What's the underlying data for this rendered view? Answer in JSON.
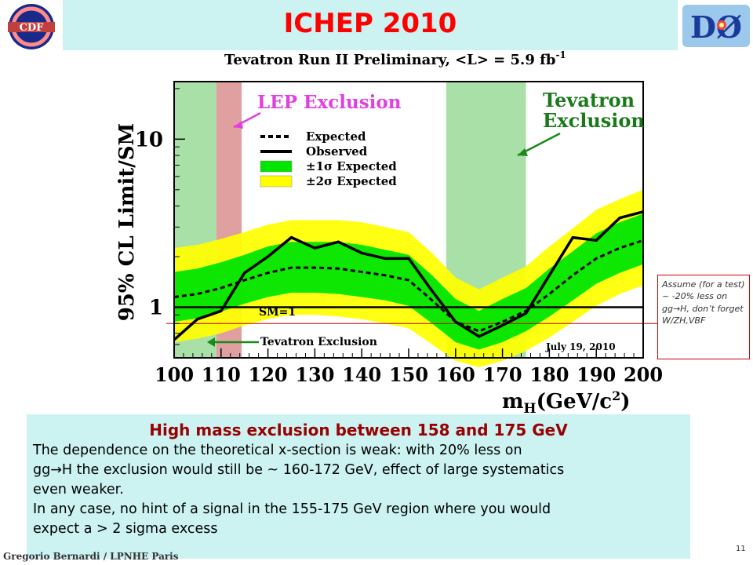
{
  "header": {
    "title": "ICHEP 2010",
    "left_logo_text": "CDF",
    "right_logo_text": "DØ"
  },
  "note": {
    "text": "Assume (for a test) ~ -20% less on gg→H, don’t forget W/ZH,VBF"
  },
  "bottom": {
    "heading": "High mass exclusion between 158 and 175 GeV",
    "line1": "The dependence  on the theoretical x-section is weak: with 20% less on",
    "line2": "gg→H the exclusion would still be ~ 160-172 GeV, effect of large systematics",
    "line3": "even weaker.",
    "line4": "In any case, no hint of a signal in the 155-175 GeV region where you would",
    "line5": "expect a > 2 sigma excess"
  },
  "footer": {
    "author": "Gregorio Bernardi / LPNHE Paris",
    "page": "11"
  },
  "colors": {
    "one_sigma": "#00e600",
    "two_sigma": "#ffff00",
    "tevatron_excl": "#a8e0a8",
    "lep_excl": "#e0a0a0",
    "title": "#ff0000"
  },
  "chart_data": {
    "type": "line",
    "title": "Tevatron Run II Preliminary, <L> = 5.9 fb",
    "title_sup": "-1",
    "ylabel": "95% CL Limit/SM",
    "xlabel": "m",
    "xlabel_sub": "H",
    "xlabel_unit": "(GeV/c",
    "xlabel_unit_sup": "2",
    "xlabel_unit_end": ")",
    "xlim": [
      100,
      200
    ],
    "ylim": [
      0.5,
      22
    ],
    "yscale": "log",
    "x_ticks": [
      100,
      110,
      120,
      130,
      140,
      150,
      160,
      170,
      180,
      190,
      200
    ],
    "y_tick_labels": [
      {
        "value": 10,
        "label": "10"
      },
      {
        "value": 1,
        "label": "1"
      }
    ],
    "legend": [
      "Expected",
      "Observed",
      "±1σ Expected",
      "±2σ Expected"
    ],
    "legend_position": "top-center",
    "annotations": {
      "lep": "LEP Exclusion",
      "tev_line1": "Tevatron",
      "tev_line2": "Exclusion",
      "tev_bottom": "Tevatron Exclusion",
      "sm": "SM=1",
      "date": "July 19, 2010"
    },
    "regions": {
      "tevatron": [
        [
          100,
          109
        ],
        [
          158,
          175
        ]
      ],
      "lep": [
        [
          109,
          114.4
        ]
      ]
    },
    "x": [
      100,
      105,
      110,
      115,
      120,
      125,
      130,
      135,
      140,
      145,
      150,
      155,
      160,
      165,
      170,
      175,
      180,
      185,
      190,
      195,
      200
    ],
    "series": [
      {
        "name": "Observed",
        "values": [
          0.64,
          0.85,
          0.95,
          1.6,
          2.0,
          2.6,
          2.25,
          2.45,
          2.1,
          1.95,
          1.95,
          1.25,
          0.82,
          0.67,
          0.78,
          0.92,
          1.55,
          2.6,
          2.5,
          3.4,
          3.7
        ]
      },
      {
        "name": "Expected",
        "values": [
          1.15,
          1.2,
          1.3,
          1.45,
          1.6,
          1.72,
          1.72,
          1.7,
          1.62,
          1.55,
          1.45,
          1.1,
          0.82,
          0.72,
          0.82,
          0.95,
          1.2,
          1.55,
          1.95,
          2.25,
          2.5
        ]
      }
    ],
    "band_1sigma": {
      "lower": [
        0.82,
        0.86,
        0.94,
        1.05,
        1.15,
        1.22,
        1.22,
        1.2,
        1.15,
        1.1,
        1.02,
        0.8,
        0.62,
        0.56,
        0.62,
        0.72,
        0.88,
        1.1,
        1.38,
        1.6,
        1.8
      ],
      "upper": [
        1.62,
        1.7,
        1.85,
        2.05,
        2.3,
        2.45,
        2.45,
        2.45,
        2.35,
        2.2,
        2.05,
        1.55,
        1.12,
        0.95,
        1.12,
        1.3,
        1.7,
        2.15,
        2.75,
        3.2,
        3.6
      ]
    },
    "band_2sigma": {
      "lower": [
        0.62,
        0.65,
        0.7,
        0.78,
        0.85,
        0.9,
        0.9,
        0.88,
        0.85,
        0.8,
        0.75,
        0.6,
        0.48,
        0.44,
        0.48,
        0.55,
        0.66,
        0.82,
        1.02,
        1.2,
        1.35
      ],
      "upper": [
        2.25,
        2.35,
        2.55,
        2.8,
        3.1,
        3.3,
        3.3,
        3.3,
        3.2,
        3.0,
        2.8,
        2.1,
        1.5,
        1.28,
        1.5,
        1.75,
        2.3,
        2.95,
        3.8,
        4.4,
        5.0
      ]
    }
  }
}
